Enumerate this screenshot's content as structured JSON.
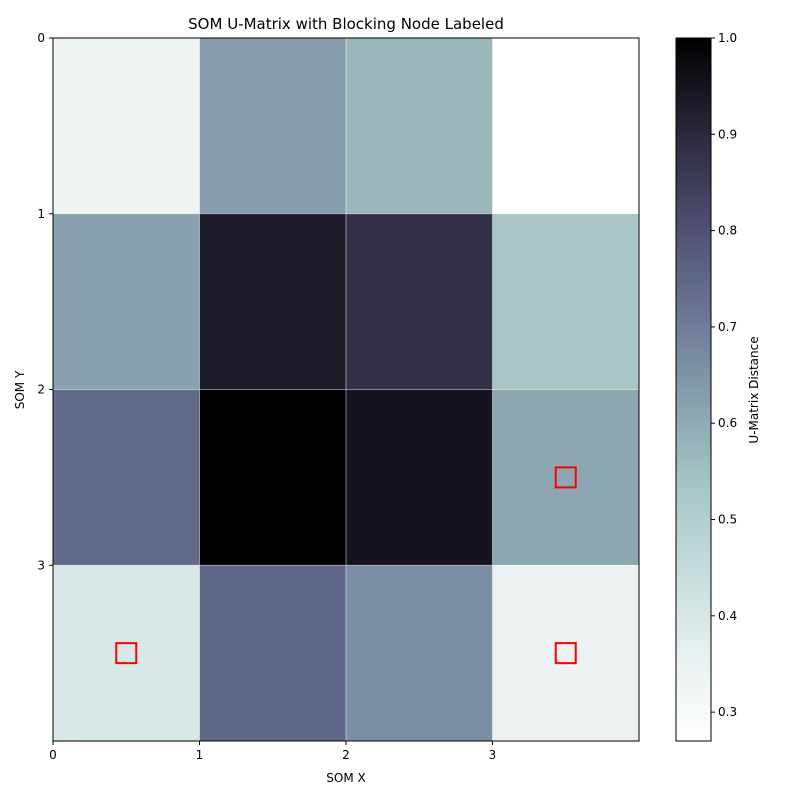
{
  "chart_data": {
    "type": "heatmap",
    "title": "SOM U-Matrix with Blocking Node Labeled",
    "xlabel": "SOM X",
    "ylabel": "SOM Y",
    "x_ticks": [
      "0",
      "1",
      "2",
      "3"
    ],
    "y_ticks": [
      "0",
      "1",
      "2",
      "3"
    ],
    "xlim": [
      0,
      4
    ],
    "ylim": [
      0,
      4
    ],
    "y_inverted": true,
    "grid": true,
    "colormap": "bone_r",
    "values": [
      [
        0.33,
        0.63,
        0.57,
        0.27
      ],
      [
        0.62,
        0.93,
        0.88,
        0.53
      ],
      [
        0.74,
        1.0,
        0.95,
        0.61
      ],
      [
        0.4,
        0.75,
        0.66,
        0.34
      ]
    ],
    "markers": [
      {
        "x": 3.5,
        "y": 2.5
      },
      {
        "x": 0.5,
        "y": 3.5
      },
      {
        "x": 3.5,
        "y": 3.5
      }
    ],
    "marker_color": "#ff0000",
    "colorbar": {
      "label": "U-Matrix Distance",
      "min": 0.27,
      "max": 1.0,
      "ticks": [
        "0.3",
        "0.4",
        "0.5",
        "0.6",
        "0.7",
        "0.8",
        "0.9",
        "1.0"
      ]
    }
  }
}
